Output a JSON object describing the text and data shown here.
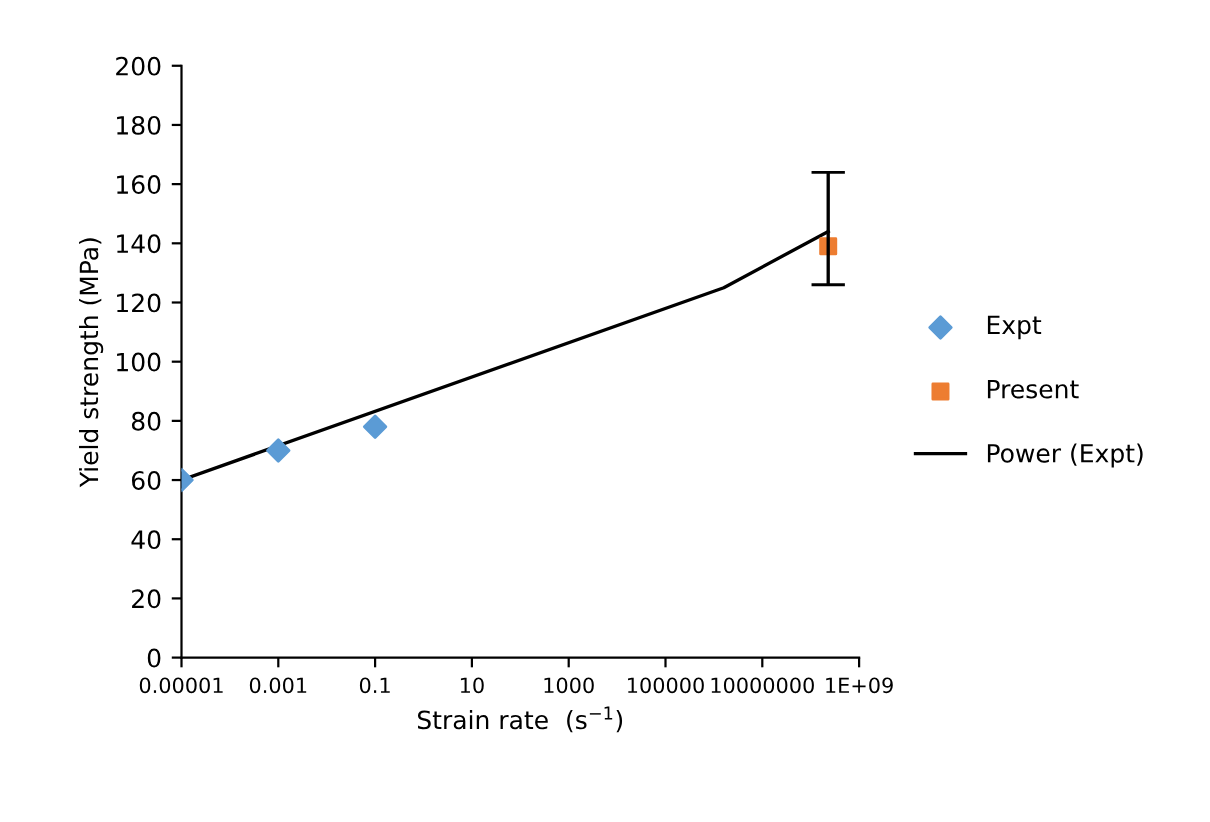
{
  "chart_data": {
    "type": "scatter",
    "xlabel": "Strain rate  (s$^{−1}$)",
    "ylabel": "Yield strength (MPa)",
    "log": "x",
    "xlim": [
      1e-05,
      1000000000
    ],
    "xticks": [
      {
        "value": 1e-05,
        "label": "0.00001"
      },
      {
        "value": 0.001,
        "label": "0.001"
      },
      {
        "value": 0.1,
        "label": "0.1"
      },
      10,
      1000,
      100000,
      10000000,
      {
        "value": 1000000000,
        "label": "1E+09"
      }
    ],
    "ylim": [
      0,
      200
    ],
    "yticks": [
      0,
      20,
      40,
      60,
      80,
      100,
      120,
      140,
      160,
      180,
      200
    ],
    "grid": false,
    "legend": "right",
    "series": [
      {
        "name": "Expt",
        "marker": "diamond",
        "color": "#5b9bd5",
        "x": [
          1e-05,
          0.001,
          0.1
        ],
        "values": [
          60,
          70,
          78
        ]
      },
      {
        "name": "Present",
        "marker": "square",
        "color": "#ed7d31",
        "x": [
          230000000
        ],
        "values": [
          139
        ],
        "errors": [
          [
            126,
            164
          ]
        ]
      },
      {
        "name": "Power (Expt)",
        "type": "line",
        "marker": "none",
        "line_style": "solid",
        "color": "#000000",
        "x": [
          1e-05,
          1600000,
          230000000
        ],
        "values": [
          60,
          125,
          144
        ]
      }
    ]
  }
}
